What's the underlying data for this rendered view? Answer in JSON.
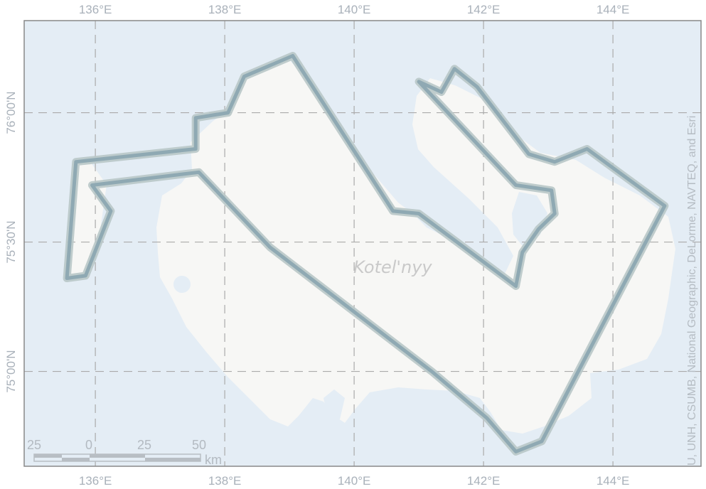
{
  "map": {
    "colors": {
      "water": "#e4edf5",
      "land": "#f7f7f5",
      "grid": "#aaaaaa",
      "track": "#8fa9b3",
      "track_halo": "#b8c6c8",
      "frame": "#888888"
    },
    "lon_ticks": [
      {
        "value": 136,
        "label": "136°E"
      },
      {
        "value": 138,
        "label": "138°E"
      },
      {
        "value": 140,
        "label": "140°E"
      },
      {
        "value": 142,
        "label": "142°E"
      },
      {
        "value": 144,
        "label": "144°E"
      }
    ],
    "lat_ticks": [
      {
        "value": 76.0,
        "label": "76°00'N"
      },
      {
        "value": 75.5,
        "label": "75°30'N"
      },
      {
        "value": 75.0,
        "label": "75°00'N"
      }
    ],
    "place_label": "Kotel'nyy",
    "attribution": "U, UNH, CSUMB, National Geographic, DeLorme, NAVTEQ, and Esri",
    "scale_bar": {
      "labels": [
        "25",
        "0",
        "25",
        "50"
      ],
      "unit": "km"
    },
    "track": [
      [
        135.56,
        75.36
      ],
      [
        135.85,
        75.37
      ],
      [
        136.24,
        75.62
      ],
      [
        135.95,
        75.72
      ],
      [
        137.6,
        75.77
      ],
      [
        138.7,
        75.48
      ],
      [
        141.2,
        75.0
      ],
      [
        142.05,
        74.82
      ],
      [
        142.5,
        74.69
      ],
      [
        142.9,
        74.73
      ],
      [
        144.8,
        75.64
      ],
      [
        143.6,
        75.86
      ],
      [
        143.1,
        75.81
      ],
      [
        142.7,
        75.84
      ],
      [
        141.9,
        76.1
      ],
      [
        141.55,
        76.17
      ],
      [
        141.35,
        76.08
      ],
      [
        141.0,
        76.12
      ],
      [
        142.5,
        75.72
      ],
      [
        143.05,
        75.7
      ],
      [
        143.1,
        75.61
      ],
      [
        142.85,
        75.55
      ],
      [
        142.6,
        75.46
      ],
      [
        142.5,
        75.33
      ],
      [
        141.0,
        75.61
      ],
      [
        140.6,
        75.62
      ],
      [
        139.05,
        76.22
      ],
      [
        138.3,
        76.14
      ],
      [
        138.05,
        76.0
      ],
      [
        137.55,
        75.98
      ],
      [
        137.55,
        75.86
      ],
      [
        135.7,
        75.81
      ],
      [
        135.56,
        75.36
      ]
    ]
  }
}
